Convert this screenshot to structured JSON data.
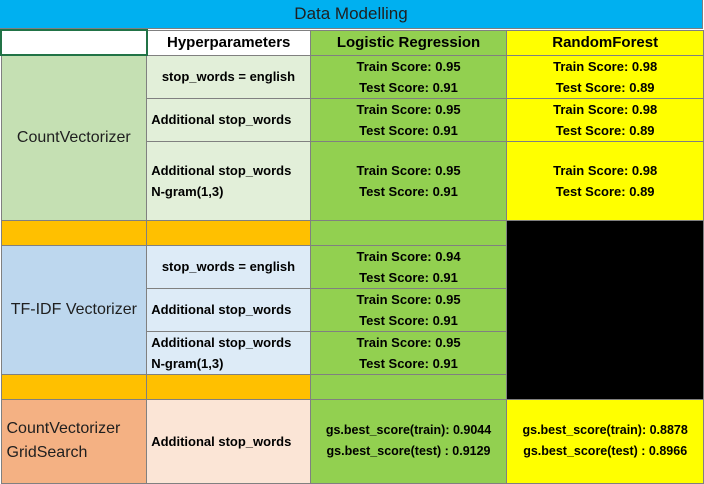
{
  "title": "Data Modelling",
  "headers": {
    "col0": "",
    "hyperparameters": "Hyperparameters",
    "lr": "Logistic Regression",
    "rf": "RandomForest"
  },
  "countvectorizer": {
    "label": "CountVectorizer",
    "rows": [
      {
        "hp": "stop_words = english",
        "lr": [
          "Train Score:  0.95",
          "Test Score: 0.91"
        ],
        "rf": [
          "Train Score:  0.98",
          "Test Score: 0.89"
        ]
      },
      {
        "hp": "Additional stop_words",
        "lr": [
          "Train Score:  0.95",
          "Test Score: 0.91"
        ],
        "rf": [
          "Train Score:  0.98",
          "Test Score: 0.89"
        ]
      },
      {
        "hp": [
          "Additional stop_words",
          "N-gram(1,3)"
        ],
        "lr": [
          "Train Score:  0.95",
          "Test Score: 0.91"
        ],
        "rf": [
          "Train Score:  0.98",
          "Test Score: 0.89"
        ]
      }
    ]
  },
  "tfidf": {
    "label": "TF-IDF Vectorizer",
    "rows": [
      {
        "hp": "stop_words = english",
        "lr": [
          "Train Score:  0.94",
          "Test Score: 0.91"
        ]
      },
      {
        "hp": "Additional stop_words",
        "lr": [
          "Train Score:  0.95",
          "Test Score: 0.91"
        ]
      },
      {
        "hp": [
          "Additional stop_words",
          "N-gram(1,3)"
        ],
        "lr": [
          "Train Score:  0.95",
          "Test Score: 0.91"
        ]
      }
    ]
  },
  "gridsearch": {
    "label": [
      "CountVectorizer",
      "GridSearch"
    ],
    "hp": "Additional stop_words",
    "lr": [
      "gs.best_score(train): 0.9044",
      "gs.best_score(test) : 0.9129"
    ],
    "rf": [
      "gs.best_score(train): 0.8878",
      "gs.best_score(test) : 0.8966"
    ]
  },
  "colors": {
    "title_bg": "#00b0f0",
    "countvectorizer": "#c5e0b3",
    "tfidf": "#bdd7ee",
    "gridsearch": "#f4b183",
    "logistic_regression": "#92d050",
    "random_forest": "#ffff00",
    "separator": "#ffc000"
  }
}
